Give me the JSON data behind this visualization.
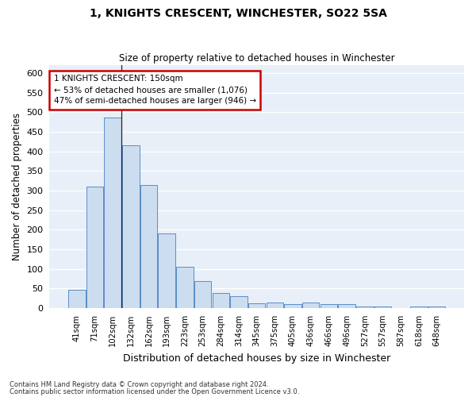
{
  "title1": "1, KNIGHTS CRESCENT, WINCHESTER, SO22 5SA",
  "title2": "Size of property relative to detached houses in Winchester",
  "xlabel": "Distribution of detached houses by size in Winchester",
  "ylabel": "Number of detached properties",
  "categories": [
    "41sqm",
    "71sqm",
    "102sqm",
    "132sqm",
    "162sqm",
    "193sqm",
    "223sqm",
    "253sqm",
    "284sqm",
    "314sqm",
    "345sqm",
    "375sqm",
    "405sqm",
    "436sqm",
    "466sqm",
    "496sqm",
    "527sqm",
    "557sqm",
    "587sqm",
    "618sqm",
    "648sqm"
  ],
  "values": [
    46,
    311,
    487,
    415,
    315,
    190,
    105,
    70,
    38,
    30,
    13,
    15,
    10,
    15,
    10,
    10,
    5,
    5,
    0,
    5,
    5
  ],
  "bar_color": "#ccddf0",
  "bar_edge_color": "#5b8dc8",
  "annotation_text": "1 KNIGHTS CRESCENT: 150sqm\n← 53% of detached houses are smaller (1,076)\n47% of semi-detached houses are larger (946) →",
  "annotation_box_facecolor": "#ffffff",
  "annotation_box_edgecolor": "#cc0000",
  "vline_bar_index": 2,
  "ylim": [
    0,
    620
  ],
  "yticks": [
    0,
    50,
    100,
    150,
    200,
    250,
    300,
    350,
    400,
    450,
    500,
    550,
    600
  ],
  "footer1": "Contains HM Land Registry data © Crown copyright and database right 2024.",
  "footer2": "Contains public sector information licensed under the Open Government Licence v3.0.",
  "fig_facecolor": "#ffffff",
  "plot_facecolor": "#e8eff8"
}
